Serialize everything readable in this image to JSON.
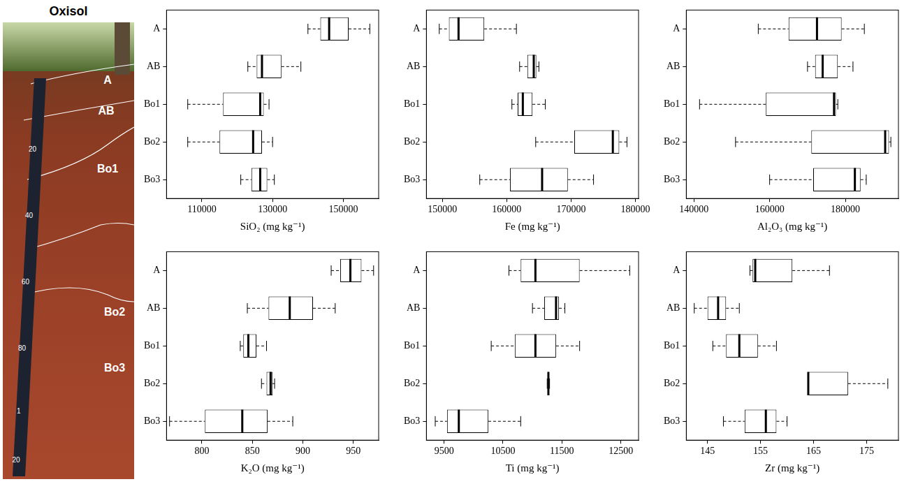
{
  "photo": {
    "title": "Oxisol",
    "horizons": [
      "A",
      "AB",
      "Bo1",
      "Bo2",
      "Bo3"
    ],
    "tape_labels": [
      "20",
      "40",
      "60",
      "80",
      "1",
      "20"
    ]
  },
  "chart_data": [
    {
      "type": "boxplot",
      "orientation": "horizontal",
      "x_label": "SiO₂ (mg kg⁻¹)",
      "color": "#000000",
      "grid": false,
      "categories": [
        "A",
        "AB",
        "Bo1",
        "Bo2",
        "Bo3"
      ],
      "boxes": [
        {
          "min": 140000,
          "q1": 143500,
          "median": 146000,
          "q3": 151500,
          "max": 157500
        },
        {
          "min": 123000,
          "q1": 125500,
          "median": 127000,
          "q3": 132500,
          "max": 138000
        },
        {
          "min": 106000,
          "q1": 116000,
          "median": 126500,
          "q3": 127500,
          "max": 129000
        },
        {
          "min": 106000,
          "q1": 115000,
          "median": 124500,
          "q3": 127000,
          "max": 130000
        },
        {
          "min": 121000,
          "q1": 124000,
          "median": 126500,
          "q3": 128500,
          "max": 130500
        }
      ],
      "xlim": [
        100000,
        160000
      ],
      "xticks": [
        110000,
        130000,
        150000
      ]
    },
    {
      "type": "boxplot",
      "orientation": "horizontal",
      "x_label": "Fe (mg kg⁻¹)",
      "color": "#000000",
      "grid": false,
      "categories": [
        "A",
        "AB",
        "Bo1",
        "Bo2",
        "Bo3"
      ],
      "boxes": [
        {
          "min": 149500,
          "q1": 151000,
          "median": 152500,
          "q3": 156500,
          "max": 161500
        },
        {
          "min": 162000,
          "q1": 163200,
          "median": 164200,
          "q3": 164600,
          "max": 165000
        },
        {
          "min": 160800,
          "q1": 161700,
          "median": 162500,
          "q3": 164000,
          "max": 166000
        },
        {
          "min": 164500,
          "q1": 170500,
          "median": 176500,
          "q3": 177500,
          "max": 178700
        },
        {
          "min": 155800,
          "q1": 160500,
          "median": 165500,
          "q3": 169500,
          "max": 173500
        }
      ],
      "xlim": [
        147500,
        180500
      ],
      "xticks": [
        150000,
        160000,
        170000,
        180000
      ]
    },
    {
      "type": "boxplot",
      "orientation": "horizontal",
      "x_label": "Al₂O₃ (mg kg⁻¹)",
      "color": "#000000",
      "grid": false,
      "categories": [
        "A",
        "AB",
        "Bo1",
        "Bo2",
        "Bo3"
      ],
      "boxes": [
        {
          "min": 157000,
          "q1": 165000,
          "median": 172500,
          "q3": 179000,
          "max": 185000
        },
        {
          "min": 170000,
          "q1": 172000,
          "median": 174000,
          "q3": 178000,
          "max": 182000
        },
        {
          "min": 141500,
          "q1": 159000,
          "median": 177000,
          "q3": 177500,
          "max": 178000
        },
        {
          "min": 151000,
          "q1": 171000,
          "median": 190500,
          "q3": 191500,
          "max": 192000
        },
        {
          "min": 160000,
          "q1": 171500,
          "median": 182500,
          "q3": 184000,
          "max": 185500
        }
      ],
      "xlim": [
        138000,
        194000
      ],
      "xticks": [
        140000,
        160000,
        180000
      ]
    },
    {
      "type": "boxplot",
      "orientation": "horizontal",
      "x_label": "K₂O (mg kg⁻¹)",
      "color": "#000000",
      "grid": false,
      "categories": [
        "A",
        "AB",
        "Bo1",
        "Bo2",
        "Bo3"
      ],
      "boxes": [
        {
          "min": 928,
          "q1": 937,
          "median": 947,
          "q3": 958,
          "max": 970
        },
        {
          "min": 845,
          "q1": 866,
          "median": 887,
          "q3": 910,
          "max": 932
        },
        {
          "min": 838,
          "q1": 841,
          "median": 846,
          "q3": 854,
          "max": 864
        },
        {
          "min": 859,
          "q1": 864,
          "median": 868,
          "q3": 870,
          "max": 872
        },
        {
          "min": 768,
          "q1": 803,
          "median": 840,
          "q3": 865,
          "max": 890
        }
      ],
      "xlim": [
        765,
        975
      ],
      "xticks": [
        800,
        850,
        900,
        950
      ]
    },
    {
      "type": "boxplot",
      "orientation": "horizontal",
      "x_label": "Ti (mg kg⁻¹)",
      "color": "#000000",
      "grid": false,
      "categories": [
        "A",
        "AB",
        "Bo1",
        "Bo2",
        "Bo3"
      ],
      "boxes": [
        {
          "min": 10600,
          "q1": 10800,
          "median": 11050,
          "q3": 11800,
          "max": 12650
        },
        {
          "min": 11000,
          "q1": 11200,
          "median": 11400,
          "q3": 11450,
          "max": 11550
        },
        {
          "min": 10300,
          "q1": 10700,
          "median": 11050,
          "q3": 11400,
          "max": 11800
        },
        {
          "min": 11250,
          "q1": 11260,
          "median": 11270,
          "q3": 11280,
          "max": 11290
        },
        {
          "min": 9350,
          "q1": 9550,
          "median": 9750,
          "q3": 10250,
          "max": 10800
        }
      ],
      "xlim": [
        9200,
        12800
      ],
      "xticks": [
        9500,
        10500,
        11500,
        12500
      ]
    },
    {
      "type": "boxplot",
      "orientation": "horizontal",
      "x_label": "Zr (mg kg⁻¹)",
      "color": "#000000",
      "grid": false,
      "categories": [
        "A",
        "AB",
        "Bo1",
        "Bo2",
        "Bo3"
      ],
      "boxes": [
        {
          "min": 153,
          "q1": 153.5,
          "median": 154,
          "q3": 161,
          "max": 168
        },
        {
          "min": 142.5,
          "q1": 145,
          "median": 147,
          "q3": 148.5,
          "max": 151
        },
        {
          "min": 146,
          "q1": 148.5,
          "median": 151,
          "q3": 154.5,
          "max": 158
        },
        {
          "min": 164,
          "q1": 164,
          "median": 164,
          "q3": 171.5,
          "max": 179
        },
        {
          "min": 148,
          "q1": 152,
          "median": 156,
          "q3": 158,
          "max": 160
        }
      ],
      "xlim": [
        141,
        181
      ],
      "xticks": [
        145,
        155,
        165,
        175
      ]
    }
  ]
}
